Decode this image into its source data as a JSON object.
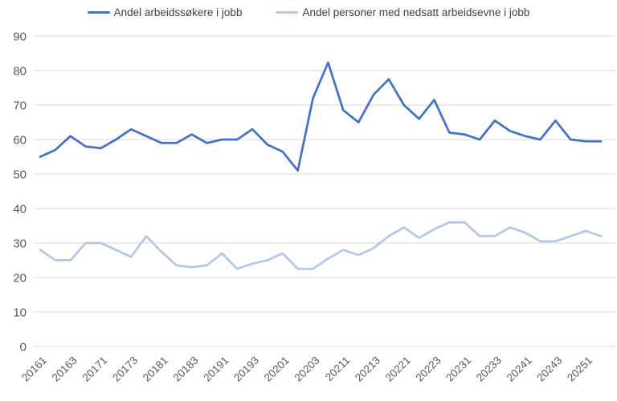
{
  "legend": {
    "items": [
      {
        "label": "Andel arbeidssøkere i jobb",
        "color": "#4472C4"
      },
      {
        "label": "Andel personer med nedsatt arbeidsevne i jobb",
        "color": "#B4C7E7"
      }
    ]
  },
  "colors": {
    "grid": "#D9D9D9",
    "tick_text": "#595959",
    "series_dark": "#4472C4",
    "series_light": "#B4C7E7"
  },
  "chart_data": {
    "type": "line",
    "title": "",
    "xlabel": "",
    "ylabel": "",
    "grid": true,
    "legend_position": "top",
    "ylim": [
      0,
      90
    ],
    "yticks": [
      0,
      10,
      20,
      30,
      40,
      50,
      60,
      70,
      80,
      90
    ],
    "x_tick_step": 2,
    "x": [
      "20161",
      "20162",
      "20163",
      "20164",
      "20171",
      "20172",
      "20173",
      "20174",
      "20181",
      "20182",
      "20183",
      "20184",
      "20191",
      "20192",
      "20193",
      "20194",
      "20201",
      "20202",
      "20203",
      "20204",
      "20211",
      "20212",
      "20213",
      "20214",
      "20221",
      "20222",
      "20223",
      "20224",
      "20231",
      "20232",
      "20233",
      "20234",
      "20241",
      "20242",
      "20243",
      "20244",
      "20251",
      "20252"
    ],
    "x_tick_labels_shown": [
      "20161",
      "20163",
      "20171",
      "20173",
      "20181",
      "20183",
      "20191",
      "20193",
      "20201",
      "20203",
      "20211",
      "20213",
      "20221",
      "20223",
      "20231",
      "20233",
      "20241",
      "20243",
      "20251"
    ],
    "series": [
      {
        "name": "Andel arbeidssøkere i jobb",
        "color": "#4472C4",
        "values": [
          55,
          57,
          61,
          58,
          57.5,
          60,
          63,
          61,
          59,
          59,
          61.5,
          59,
          60,
          60,
          63,
          58.5,
          56.5,
          51,
          72,
          82.3,
          68.5,
          65,
          73,
          77.5,
          70,
          66,
          71.5,
          62,
          61.5,
          60,
          65.5,
          62.5,
          61,
          60,
          65.5,
          60,
          59.5,
          59.5
        ]
      },
      {
        "name": "Andel personer med nedsatt arbeidsevne i jobb",
        "color": "#B4C7E7",
        "values": [
          28,
          25,
          25,
          30,
          30,
          28,
          26,
          32,
          27.5,
          23.5,
          23,
          23.5,
          27,
          22.5,
          24,
          25,
          27,
          22.5,
          22.5,
          25.5,
          28,
          26.5,
          28.5,
          32,
          34.5,
          31.5,
          34,
          36,
          36,
          32,
          32,
          34.5,
          33,
          30.5,
          30.5,
          32,
          33.5,
          32
        ]
      }
    ]
  }
}
